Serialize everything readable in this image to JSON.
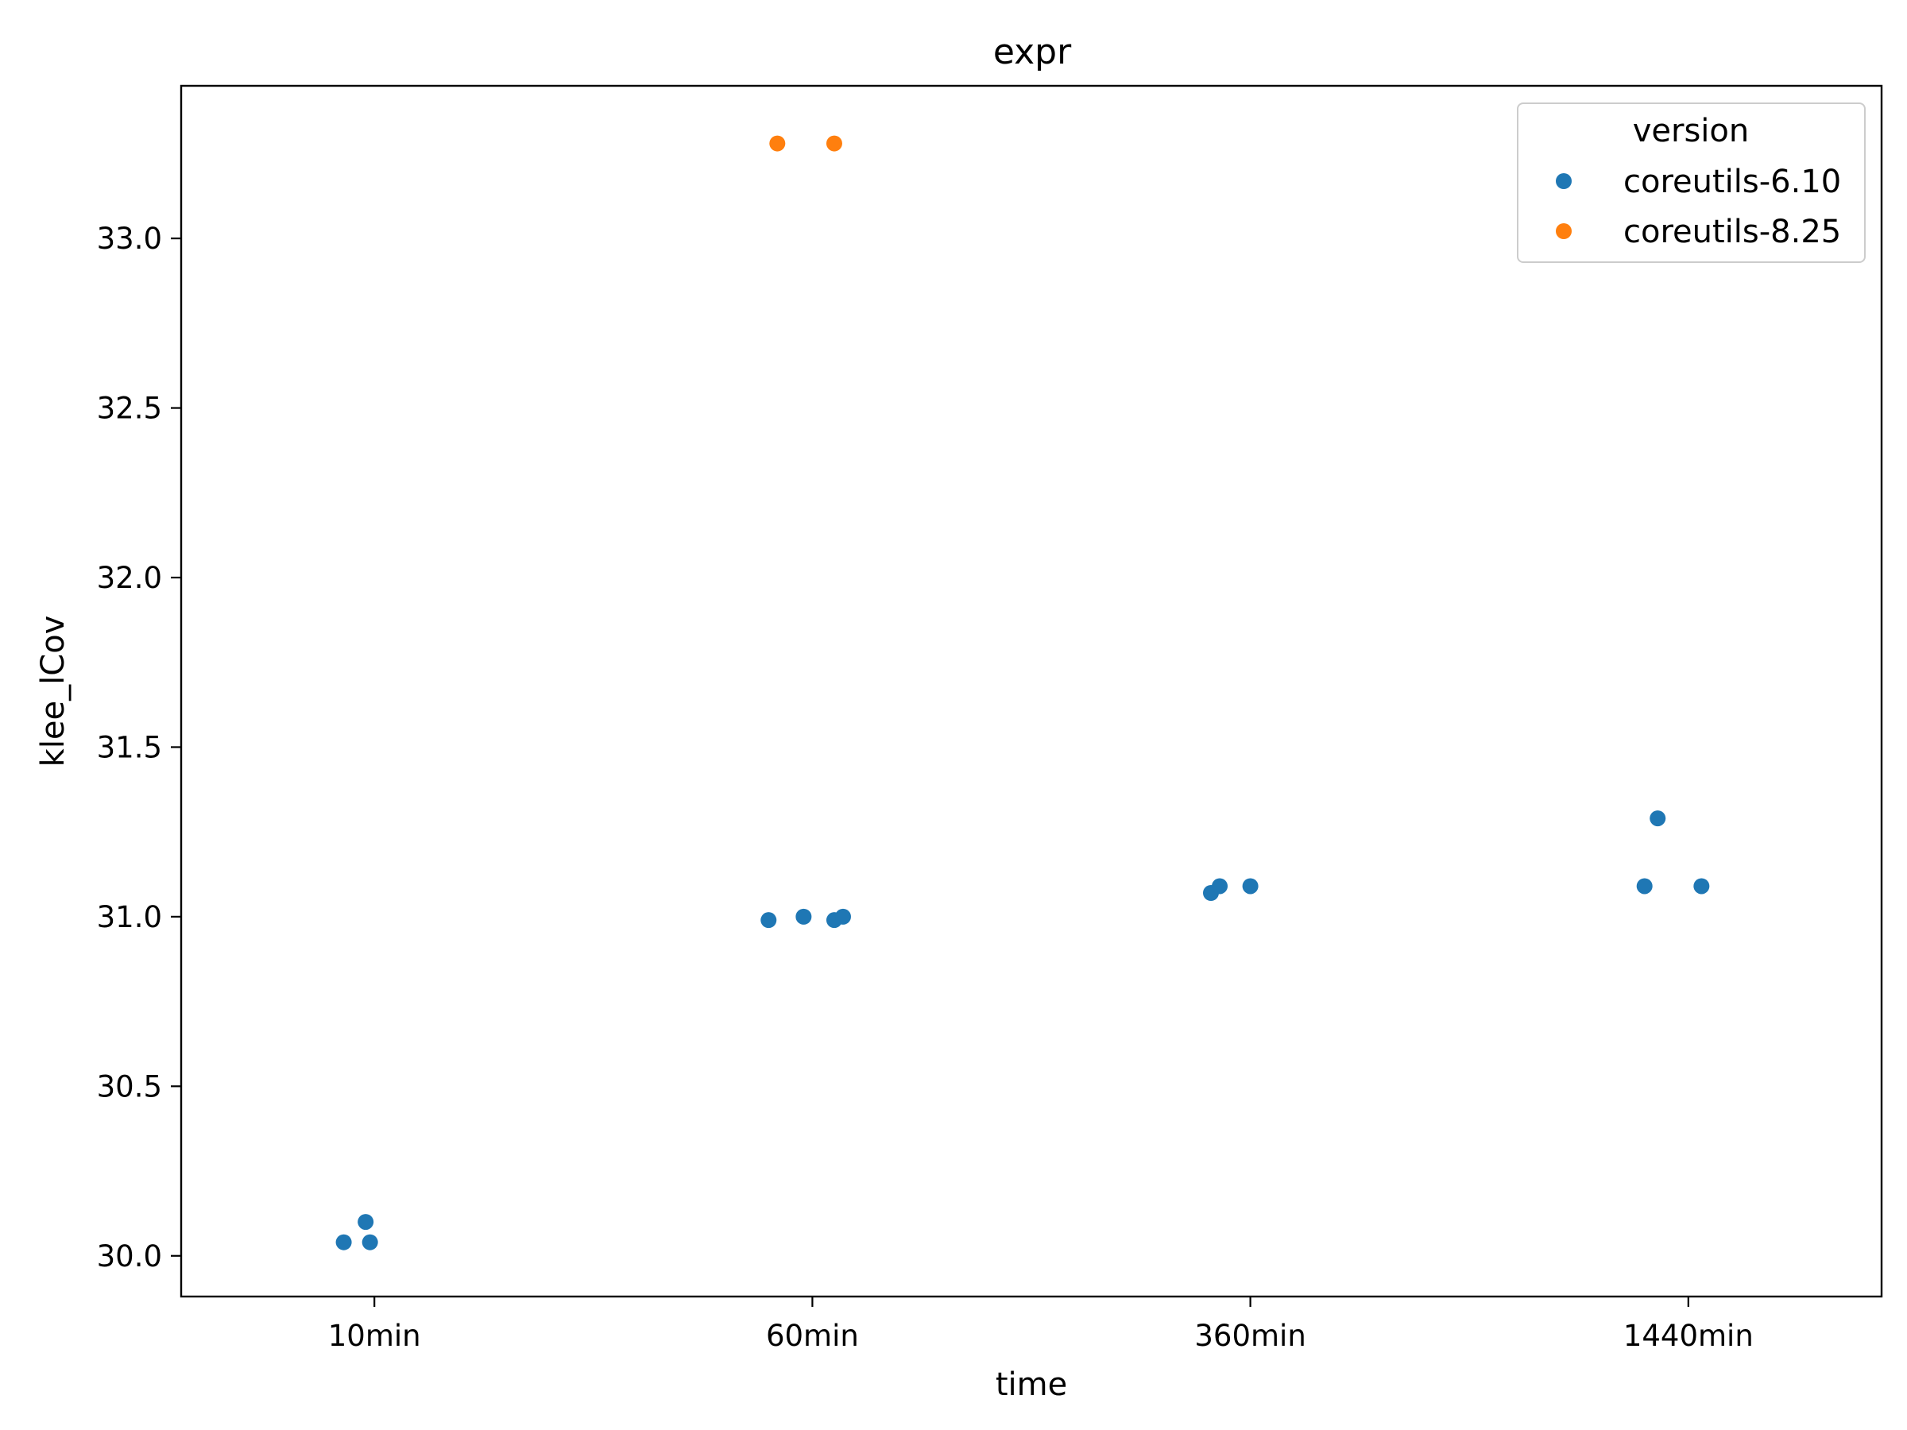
{
  "chart_data": {
    "type": "scatter",
    "title": "expr",
    "xlabel": "time",
    "ylabel": "klee_lCov",
    "categories": [
      "10min",
      "60min",
      "360min",
      "1440min"
    ],
    "ylim": [
      29.88,
      33.45
    ],
    "yticks": [
      30.0,
      30.5,
      31.0,
      31.5,
      32.0,
      32.5,
      33.0
    ],
    "grid": false,
    "legend": {
      "title": "version",
      "placement": "top-right"
    },
    "series": [
      {
        "name": "coreutils-6.10",
        "color": "#1f77b4",
        "points": [
          {
            "category": "10min",
            "jitter": -0.07,
            "y": 30.04
          },
          {
            "category": "10min",
            "jitter": -0.02,
            "y": 30.1
          },
          {
            "category": "10min",
            "jitter": -0.01,
            "y": 30.04
          },
          {
            "category": "60min",
            "jitter": -0.1,
            "y": 30.99
          },
          {
            "category": "60min",
            "jitter": -0.02,
            "y": 31.0
          },
          {
            "category": "60min",
            "jitter": 0.05,
            "y": 30.99
          },
          {
            "category": "60min",
            "jitter": 0.07,
            "y": 31.0
          },
          {
            "category": "360min",
            "jitter": -0.09,
            "y": 31.07
          },
          {
            "category": "360min",
            "jitter": -0.07,
            "y": 31.09
          },
          {
            "category": "360min",
            "jitter": 0.0,
            "y": 31.09
          },
          {
            "category": "1440min",
            "jitter": -0.1,
            "y": 31.09
          },
          {
            "category": "1440min",
            "jitter": -0.07,
            "y": 31.29
          },
          {
            "category": "1440min",
            "jitter": 0.03,
            "y": 31.09
          }
        ]
      },
      {
        "name": "coreutils-8.25",
        "color": "#ff7f0e",
        "points": [
          {
            "category": "60min",
            "jitter": -0.08,
            "y": 33.28
          },
          {
            "category": "60min",
            "jitter": 0.05,
            "y": 33.28
          }
        ]
      }
    ]
  }
}
